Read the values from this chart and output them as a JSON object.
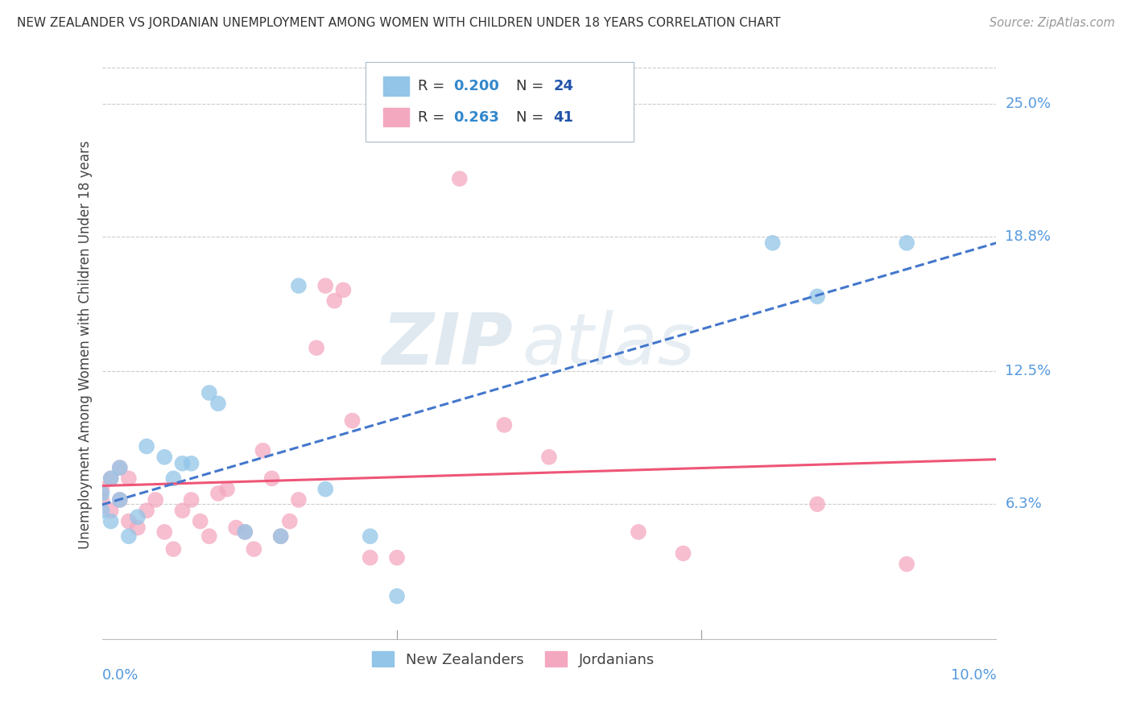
{
  "title": "NEW ZEALANDER VS JORDANIAN UNEMPLOYMENT AMONG WOMEN WITH CHILDREN UNDER 18 YEARS CORRELATION CHART",
  "source": "Source: ZipAtlas.com",
  "ylabel": "Unemployment Among Women with Children Under 18 years",
  "ytick_values": [
    0.063,
    0.125,
    0.188,
    0.25
  ],
  "ytick_labels": [
    "6.3%",
    "12.5%",
    "18.8%",
    "25.0%"
  ],
  "xmin": 0.0,
  "xmax": 0.1,
  "ymin": 0.0,
  "ymax": 0.275,
  "nz_color": "#92C5E8",
  "jordan_color": "#F4A8C0",
  "nz_line_color": "#4477CC",
  "jordan_line_color": "#EE5577",
  "nz_R": 0.2,
  "nz_N": 24,
  "jordan_R": 0.263,
  "jordan_N": 41,
  "watermark_zip": "ZIP",
  "watermark_atlas": "atlas",
  "nz_x": [
    0.0,
    0.0,
    0.001,
    0.001,
    0.002,
    0.002,
    0.003,
    0.004,
    0.005,
    0.007,
    0.008,
    0.009,
    0.01,
    0.012,
    0.013,
    0.016,
    0.02,
    0.022,
    0.025,
    0.03,
    0.033,
    0.075,
    0.08,
    0.09
  ],
  "nz_y": [
    0.06,
    0.068,
    0.055,
    0.075,
    0.065,
    0.08,
    0.048,
    0.057,
    0.09,
    0.085,
    0.075,
    0.082,
    0.082,
    0.115,
    0.11,
    0.05,
    0.048,
    0.165,
    0.07,
    0.048,
    0.02,
    0.185,
    0.16,
    0.185
  ],
  "jordan_x": [
    0.0,
    0.0,
    0.001,
    0.001,
    0.002,
    0.002,
    0.003,
    0.003,
    0.004,
    0.005,
    0.006,
    0.007,
    0.008,
    0.009,
    0.01,
    0.011,
    0.012,
    0.013,
    0.014,
    0.015,
    0.016,
    0.017,
    0.018,
    0.019,
    0.02,
    0.021,
    0.022,
    0.024,
    0.025,
    0.026,
    0.027,
    0.028,
    0.03,
    0.033,
    0.04,
    0.045,
    0.05,
    0.06,
    0.065,
    0.08,
    0.09
  ],
  "jordan_y": [
    0.065,
    0.07,
    0.06,
    0.075,
    0.08,
    0.065,
    0.055,
    0.075,
    0.052,
    0.06,
    0.065,
    0.05,
    0.042,
    0.06,
    0.065,
    0.055,
    0.048,
    0.068,
    0.07,
    0.052,
    0.05,
    0.042,
    0.088,
    0.075,
    0.048,
    0.055,
    0.065,
    0.136,
    0.165,
    0.158,
    0.163,
    0.102,
    0.038,
    0.038,
    0.215,
    0.1,
    0.085,
    0.05,
    0.04,
    0.063,
    0.035
  ],
  "background_color": "#FFFFFF",
  "grid_color": "#CCCCCC",
  "title_color": "#333333",
  "axis_label_color": "#5599DD",
  "legend_box_color": "#AACCDD",
  "legend_R_color": "#3388CC",
  "legend_N_color": "#2255AA"
}
